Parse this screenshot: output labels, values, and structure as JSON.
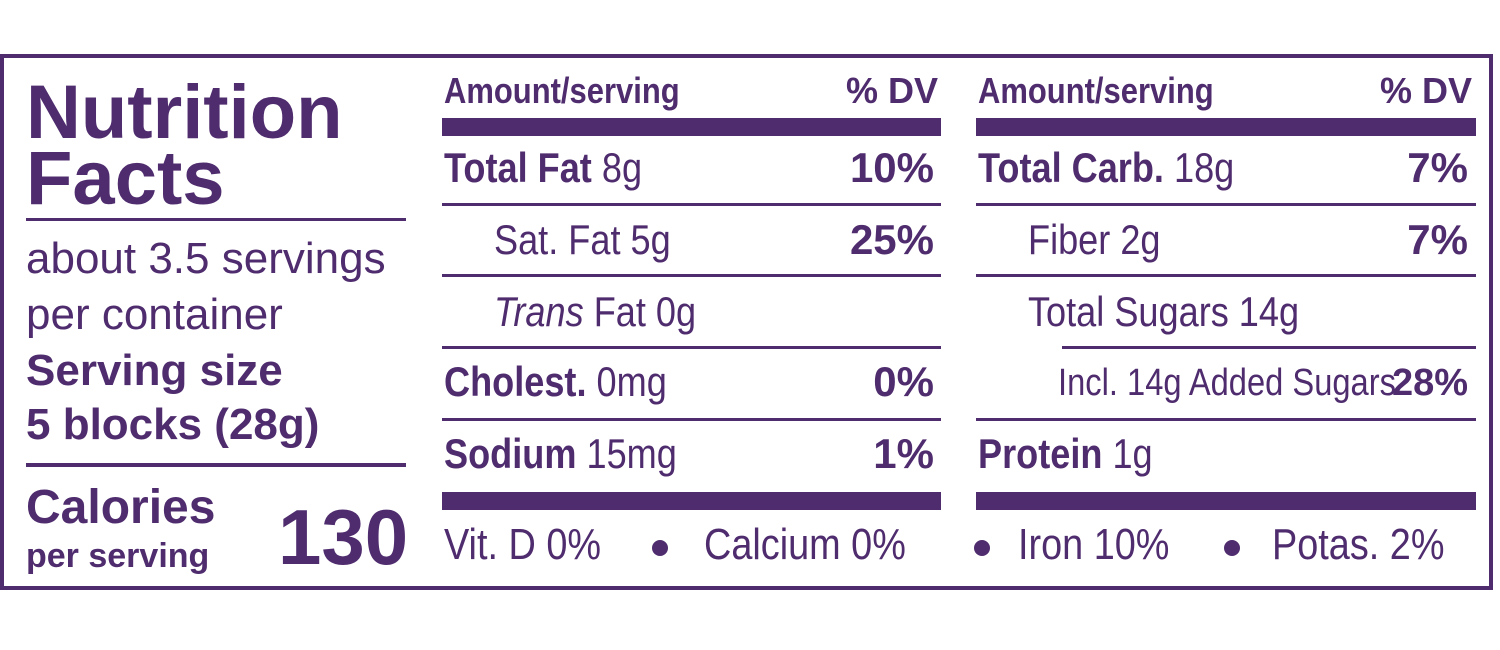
{
  "title_line1": "Nutrition",
  "title_line2": "Facts",
  "servings_line1": "about 3.5 servings",
  "servings_line2": "per container",
  "serving_size_label": "Serving size",
  "serving_size_value": "5 blocks (28g)",
  "calories_label": "Calories",
  "calories_sub": "per serving",
  "calories_value": "130",
  "left_col": {
    "header_amount": "Amount/serving",
    "header_dv": "% DV",
    "total_fat_label": "Total Fat",
    "total_fat_amount": "8g",
    "total_fat_dv": "10%",
    "sat_fat": "Sat. Fat 5g",
    "sat_fat_dv": "25%",
    "trans_label": "Trans",
    "trans_rest": "Fat 0g",
    "cholest_label": "Cholest.",
    "cholest_amount": "0mg",
    "cholest_dv": "0%",
    "sodium_label": "Sodium",
    "sodium_amount": "15mg",
    "sodium_dv": "1%"
  },
  "right_col": {
    "header_amount": "Amount/serving",
    "header_dv": "% DV",
    "carb_label": "Total Carb.",
    "carb_amount": "18g",
    "carb_dv": "7%",
    "fiber": "Fiber 2g",
    "fiber_dv": "7%",
    "sugars": "Total Sugars 14g",
    "added_sugars": "Incl. 14g Added Sugars",
    "added_sugars_dv": "28%",
    "protein_label": "Protein",
    "protein_amount": "1g"
  },
  "vitamins": {
    "vit_d": "Vit. D 0%",
    "calcium": "Calcium 0%",
    "iron": "Iron 10%",
    "potas": "Potas. 2%"
  },
  "colors": {
    "ink": "#4f2c6e",
    "background": "#ffffff"
  }
}
